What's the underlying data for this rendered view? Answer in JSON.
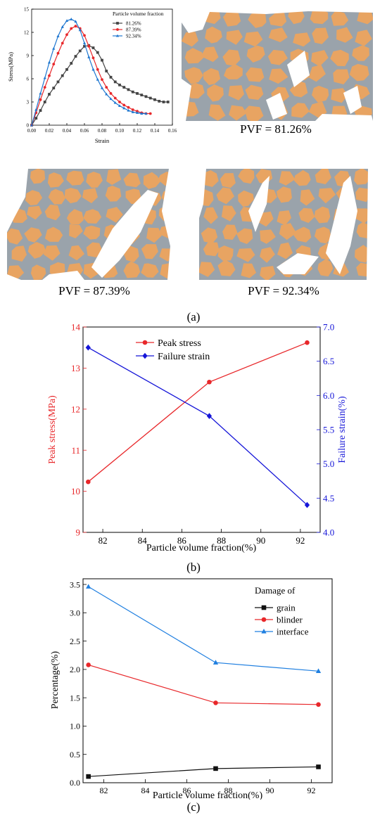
{
  "chart_data": [
    {
      "type": "line",
      "panel": "a",
      "xlabel": "Strain",
      "ylabel": "Stress(MPa)",
      "xlim": [
        0,
        0.16
      ],
      "ylim": [
        0,
        15
      ],
      "xticks": [
        "0.00",
        "0.02",
        "0.04",
        "0.06",
        "0.08",
        "0.10",
        "0.12",
        "0.14",
        "0.16"
      ],
      "yticks": [
        "0",
        "3",
        "6",
        "9",
        "12",
        "15"
      ],
      "legend_title": "Particle volume fraction",
      "legend_position": "top-right",
      "series": [
        {
          "name": "81.26%",
          "color": "#444444",
          "marker": "square",
          "x": [
            0,
            0.005,
            0.01,
            0.015,
            0.02,
            0.025,
            0.03,
            0.035,
            0.04,
            0.045,
            0.05,
            0.055,
            0.06,
            0.065,
            0.07,
            0.075,
            0.08,
            0.085,
            0.09,
            0.095,
            0.1,
            0.105,
            0.11,
            0.115,
            0.12,
            0.125,
            0.13,
            0.135,
            0.14,
            0.145,
            0.15,
            0.155
          ],
          "y": [
            0,
            0.9,
            1.9,
            3.0,
            4.0,
            4.8,
            5.6,
            6.4,
            7.2,
            8.0,
            8.9,
            9.6,
            10.2,
            10.3,
            10.0,
            9.4,
            8.4,
            7.0,
            6.2,
            5.6,
            5.2,
            4.9,
            4.6,
            4.3,
            4.1,
            3.9,
            3.7,
            3.5,
            3.3,
            3.1,
            3.0,
            3.0
          ]
        },
        {
          "name": "87.39%",
          "color": "#e8272a",
          "marker": "circle",
          "x": [
            0,
            0.005,
            0.01,
            0.015,
            0.02,
            0.025,
            0.03,
            0.035,
            0.04,
            0.045,
            0.05,
            0.055,
            0.06,
            0.065,
            0.07,
            0.075,
            0.08,
            0.085,
            0.09,
            0.095,
            0.1,
            0.105,
            0.11,
            0.115,
            0.12,
            0.125,
            0.13,
            0.135
          ],
          "y": [
            0,
            1.6,
            3.3,
            4.9,
            6.4,
            7.9,
            9.3,
            10.6,
            11.7,
            12.5,
            12.8,
            12.5,
            11.6,
            10.2,
            8.7,
            7.2,
            5.9,
            4.9,
            4.1,
            3.5,
            3.0,
            2.6,
            2.3,
            2.0,
            1.8,
            1.6,
            1.5,
            1.5
          ]
        },
        {
          "name": "92.34%",
          "color": "#1f77d0",
          "marker": "triangle",
          "x": [
            0,
            0.005,
            0.01,
            0.015,
            0.02,
            0.025,
            0.03,
            0.035,
            0.04,
            0.045,
            0.05,
            0.055,
            0.06,
            0.065,
            0.07,
            0.075,
            0.08,
            0.085,
            0.09,
            0.095,
            0.1,
            0.105,
            0.11,
            0.115,
            0.12,
            0.125,
            0.13
          ],
          "y": [
            0,
            2.0,
            4.1,
            6.1,
            8.1,
            9.9,
            11.5,
            12.7,
            13.5,
            13.7,
            13.4,
            12.3,
            10.6,
            8.8,
            7.2,
            5.9,
            4.8,
            4.0,
            3.4,
            2.9,
            2.5,
            2.2,
            1.9,
            1.7,
            1.6,
            1.5,
            1.5
          ]
        }
      ]
    },
    {
      "type": "line",
      "panel": "b",
      "xlabel": "Particle volume fraction(%)",
      "ylabel": "Peak stress(MPa)",
      "y2label": "Failure strain(%)",
      "xlim": [
        81,
        93
      ],
      "ylim": [
        9,
        14
      ],
      "y2lim": [
        4.0,
        7.0
      ],
      "xticks": [
        "82",
        "84",
        "86",
        "88",
        "90",
        "92"
      ],
      "yticks": [
        "9",
        "10",
        "11",
        "12",
        "13",
        "14"
      ],
      "y2ticks": [
        "4.0",
        "4.5",
        "5.0",
        "5.5",
        "6.0",
        "6.5",
        "7.0"
      ],
      "legend_position": "top-center",
      "series": [
        {
          "name": "Peak stress",
          "axis": "left",
          "color": "#e8272a",
          "marker": "circle",
          "x": [
            81.26,
            87.39,
            92.34
          ],
          "y": [
            10.23,
            12.66,
            13.62
          ]
        },
        {
          "name": "Failure strain",
          "axis": "right",
          "color": "#1515d8",
          "marker": "diamond",
          "x": [
            81.26,
            87.39,
            92.34
          ],
          "y": [
            6.7,
            5.7,
            4.4
          ]
        }
      ]
    },
    {
      "type": "line",
      "panel": "c",
      "xlabel": "Particle volume fraction(%)",
      "ylabel": "Percentage(%)",
      "xlim": [
        81,
        93
      ],
      "ylim": [
        0,
        3.6
      ],
      "xticks": [
        "82",
        "84",
        "86",
        "88",
        "90",
        "92"
      ],
      "yticks": [
        "0.0",
        "0.5",
        "1.0",
        "1.5",
        "2.0",
        "2.5",
        "3.0",
        "3.5"
      ],
      "legend_title": "Damage of",
      "legend_position": "top-right",
      "series": [
        {
          "name": "grain",
          "color": "#111111",
          "marker": "square",
          "x": [
            81.26,
            87.39,
            92.34
          ],
          "y": [
            0.11,
            0.25,
            0.28
          ]
        },
        {
          "name": "blinder",
          "color": "#e8272a",
          "marker": "circle",
          "x": [
            81.26,
            87.39,
            92.34
          ],
          "y": [
            2.08,
            1.41,
            1.38
          ]
        },
        {
          "name": "interface",
          "color": "#1f7fe0",
          "marker": "triangle",
          "x": [
            81.26,
            87.39,
            92.34
          ],
          "y": [
            3.46,
            2.12,
            1.97
          ]
        }
      ]
    }
  ],
  "images": [
    {
      "label": "PVF = 81.26%"
    },
    {
      "label": "PVF = 87.39%"
    },
    {
      "label": "PVF = 92.34%"
    }
  ],
  "panel_labels": {
    "a": "(a)",
    "b": "(b)",
    "c": "(c)"
  },
  "colors": {
    "particle": "#e8a462",
    "binder": "#9aa3ab"
  }
}
